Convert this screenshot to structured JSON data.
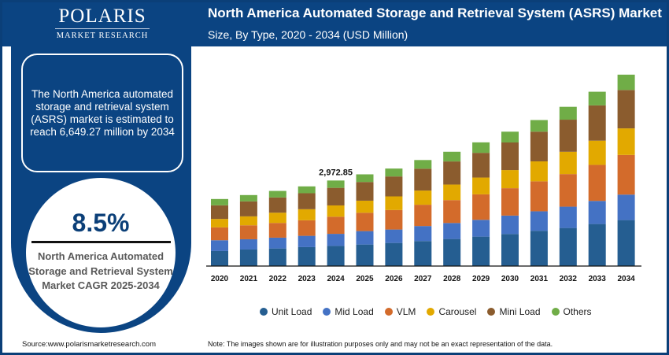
{
  "brand": {
    "name": "POLARIS",
    "tagline": "MARKET RESEARCH"
  },
  "header": {
    "title": "North America Automated Storage and Retrieval System (ASRS) Market",
    "subtitle": "Size, By Type, 2020 - 2034 (USD Million)"
  },
  "summary": "The North America automated storage and retrieval system (ASRS) market is estimated to reach 6,649.27 million by 2034",
  "cagr": {
    "value": "8.5%",
    "label": "North America Automated Storage and Retrieval System Market CAGR 2025-2034"
  },
  "footer": {
    "source": "Source:www.polarismarketresearch.com",
    "note": "Note: The images shown are for illustration purposes only and may not be an exact representation of the data."
  },
  "colors": {
    "brand": "#0b4482"
  },
  "chart_data": {
    "type": "bar",
    "stacked": true,
    "title": "North America Automated Storage and Retrieval System (ASRS) Market",
    "subtitle": "Size, By Type, 2020 - 2034 (USD Million)",
    "categories": [
      "2020",
      "2021",
      "2022",
      "2023",
      "2024",
      "2025",
      "2026",
      "2027",
      "2028",
      "2029",
      "2030",
      "2031",
      "2032",
      "2033",
      "2034"
    ],
    "ylim": [
      0,
      7000
    ],
    "grid": false,
    "legend": "bottom",
    "annotations": [
      {
        "category": "2024",
        "text": "2,972.85"
      }
    ],
    "series": [
      {
        "name": "Unit Load",
        "color": "#255e91",
        "values": [
          521,
          575,
          611,
          658,
          700,
          748,
          803,
          869,
          940,
          1022,
          1115,
          1225,
          1323,
          1460,
          1597
        ]
      },
      {
        "name": "Mid Load",
        "color": "#4472c4",
        "values": [
          375,
          356,
          375,
          392,
          419,
          466,
          466,
          521,
          556,
          584,
          638,
          677,
          740,
          803,
          885
        ]
      },
      {
        "name": "VLM",
        "color": "#d36b2b",
        "values": [
          447,
          485,
          512,
          540,
          595,
          638,
          677,
          740,
          795,
          885,
          951,
          1041,
          1132,
          1252,
          1378
        ]
      },
      {
        "name": "Carousel",
        "color": "#e2a900",
        "values": [
          293,
          310,
          356,
          384,
          392,
          419,
          474,
          493,
          540,
          584,
          630,
          693,
          775,
          841,
          923
        ]
      },
      {
        "name": "Mini Load",
        "color": "#8b5c2e",
        "values": [
          474,
          521,
          529,
          556,
          611,
          649,
          693,
          759,
          803,
          858,
          959,
          1033,
          1115,
          1225,
          1334
        ]
      },
      {
        "name": "Others",
        "color": "#70ad47",
        "values": [
          219,
          219,
          227,
          238,
          255,
          266,
          274,
          301,
          337,
          364,
          375,
          403,
          447,
          474,
          532
        ]
      }
    ]
  }
}
